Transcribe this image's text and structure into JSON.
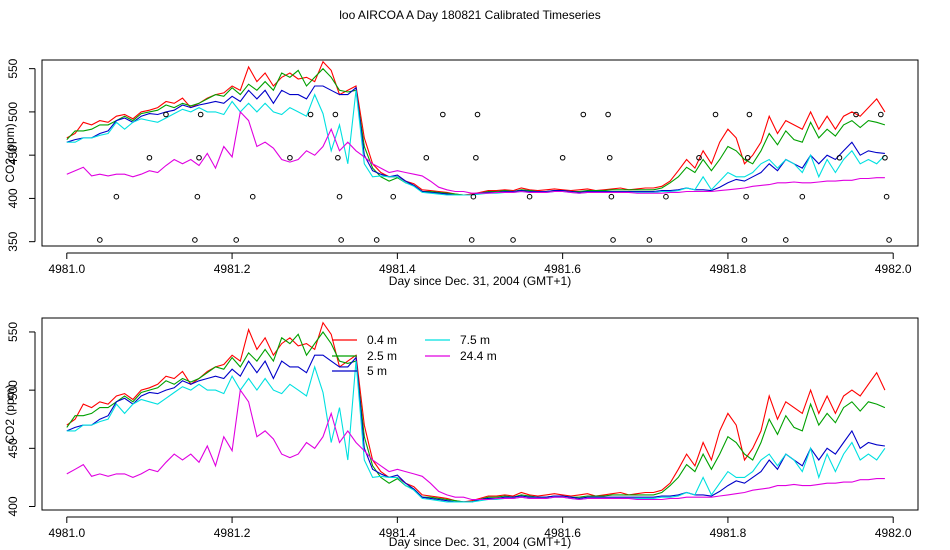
{
  "title": "loo AIRCOA A  Day 180821  Calibrated Timeseries",
  "chart_data": [
    {
      "type": "line",
      "xlabel": "Day since Dec. 31, 2004 (GMT+1)",
      "ylabel": "CO2 (ppm)",
      "xlim": [
        4980.97,
        4982.03
      ],
      "ylim": [
        345,
        560
      ],
      "xticks": [
        4981.0,
        4981.2,
        4981.4,
        4981.6,
        4981.8,
        4982.0
      ],
      "xtick_labels": [
        "4981.0",
        "4981.2",
        "4981.4",
        "4981.6",
        "4981.8",
        "4982.0"
      ],
      "yticks": [
        350,
        400,
        450,
        500,
        550
      ],
      "ytick_labels": [
        "350",
        "400",
        "450",
        "500",
        "550"
      ],
      "grid": false,
      "legend": "none",
      "x": [
        4981.0,
        4981.01,
        4981.02,
        4981.03,
        4981.04,
        4981.05,
        4981.06,
        4981.07,
        4981.08,
        4981.09,
        4981.1,
        4981.11,
        4981.12,
        4981.13,
        4981.14,
        4981.15,
        4981.16,
        4981.17,
        4981.18,
        4981.19,
        4981.2,
        4981.21,
        4981.22,
        4981.23,
        4981.24,
        4981.25,
        4981.26,
        4981.27,
        4981.28,
        4981.29,
        4981.3,
        4981.31,
        4981.32,
        4981.33,
        4981.34,
        4981.35,
        4981.36,
        4981.37,
        4981.38,
        4981.39,
        4981.4,
        4981.41,
        4981.42,
        4981.43,
        4981.44,
        4981.45,
        4981.46,
        4981.47,
        4981.48,
        4981.49,
        4981.5,
        4981.51,
        4981.52,
        4981.53,
        4981.54,
        4981.55,
        4981.56,
        4981.57,
        4981.58,
        4981.59,
        4981.6,
        4981.61,
        4981.62,
        4981.63,
        4981.64,
        4981.65,
        4981.66,
        4981.67,
        4981.68,
        4981.69,
        4981.7,
        4981.71,
        4981.72,
        4981.73,
        4981.74,
        4981.75,
        4981.76,
        4981.77,
        4981.78,
        4981.79,
        4981.8,
        4981.81,
        4981.82,
        4981.83,
        4981.84,
        4981.85,
        4981.86,
        4981.87,
        4981.88,
        4981.89,
        4981.9,
        4981.91,
        4981.92,
        4981.93,
        4981.94,
        4981.95,
        4981.96,
        4981.97,
        4981.98,
        4981.99
      ],
      "series": [
        {
          "name": "0.4 m",
          "color": "#ff0000",
          "values": [
            470,
            475,
            488,
            485,
            490,
            488,
            495,
            497,
            492,
            500,
            502,
            505,
            512,
            510,
            516,
            505,
            510,
            516,
            520,
            522,
            530,
            525,
            552,
            535,
            545,
            530,
            540,
            545,
            538,
            540,
            535,
            558,
            548,
            520,
            525,
            530,
            470,
            440,
            430,
            425,
            425,
            420,
            417,
            410,
            409,
            408,
            407,
            405,
            404,
            405,
            407,
            409,
            409,
            410,
            409,
            412,
            410,
            409,
            410,
            411,
            410,
            409,
            410,
            411,
            409,
            410,
            411,
            412,
            410,
            411,
            412,
            412,
            414,
            420,
            432,
            445,
            435,
            455,
            440,
            465,
            480,
            470,
            440,
            450,
            465,
            495,
            475,
            490,
            485,
            480,
            500,
            480,
            495,
            480,
            495,
            500,
            495,
            505,
            515,
            500
          ]
        },
        {
          "name": "2.5 m",
          "color": "#00a000",
          "values": [
            468,
            478,
            478,
            480,
            485,
            485,
            490,
            495,
            490,
            498,
            500,
            502,
            508,
            505,
            510,
            507,
            510,
            515,
            520,
            518,
            528,
            520,
            532,
            525,
            535,
            525,
            545,
            540,
            548,
            530,
            540,
            550,
            540,
            525,
            523,
            525,
            460,
            435,
            425,
            420,
            424,
            418,
            415,
            408,
            408,
            407,
            406,
            405,
            404,
            404,
            406,
            408,
            408,
            409,
            408,
            410,
            409,
            408,
            408,
            409,
            409,
            408,
            408,
            409,
            409,
            409,
            410,
            410,
            410,
            410,
            410,
            410,
            412,
            418,
            425,
            436,
            430,
            445,
            432,
            445,
            460,
            455,
            445,
            440,
            455,
            475,
            462,
            478,
            468,
            465,
            488,
            470,
            480,
            472,
            485,
            490,
            482,
            490,
            488,
            485
          ]
        },
        {
          "name": "5 m",
          "color": "#0000c8",
          "values": [
            465,
            468,
            470,
            470,
            475,
            478,
            490,
            493,
            488,
            495,
            498,
            497,
            500,
            502,
            508,
            505,
            508,
            510,
            512,
            510,
            518,
            512,
            525,
            515,
            525,
            510,
            525,
            520,
            520,
            515,
            530,
            530,
            525,
            520,
            520,
            528,
            450,
            432,
            428,
            425,
            427,
            420,
            415,
            408,
            407,
            406,
            405,
            404,
            404,
            404,
            406,
            407,
            407,
            408,
            408,
            409,
            408,
            408,
            408,
            409,
            409,
            408,
            407,
            408,
            408,
            408,
            408,
            408,
            408,
            408,
            408,
            408,
            409,
            409,
            410,
            412,
            410,
            410,
            409,
            413,
            418,
            422,
            420,
            425,
            430,
            440,
            432,
            445,
            440,
            435,
            450,
            440,
            450,
            445,
            455,
            465,
            450,
            455,
            453,
            452
          ]
        },
        {
          "name": "7.5 m",
          "color": "#00e0e0",
          "values": [
            465,
            465,
            470,
            470,
            473,
            475,
            488,
            480,
            488,
            492,
            490,
            488,
            493,
            498,
            503,
            500,
            505,
            500,
            500,
            497,
            512,
            500,
            510,
            500,
            510,
            500,
            497,
            505,
            500,
            495,
            520,
            498,
            455,
            485,
            440,
            525,
            440,
            425,
            426,
            425,
            425,
            418,
            414,
            407,
            406,
            405,
            404,
            404,
            404,
            404,
            405,
            406,
            406,
            407,
            407,
            408,
            407,
            407,
            407,
            408,
            408,
            407,
            406,
            407,
            407,
            407,
            407,
            407,
            407,
            407,
            407,
            407,
            408,
            408,
            409,
            412,
            410,
            425,
            410,
            420,
            430,
            425,
            425,
            430,
            440,
            445,
            435,
            445,
            440,
            430,
            450,
            425,
            445,
            430,
            445,
            455,
            440,
            445,
            440,
            450
          ]
        },
        {
          "name": "24.4 m",
          "color": "#e000e0",
          "values": [
            428,
            432,
            436,
            426,
            428,
            426,
            428,
            428,
            425,
            428,
            432,
            430,
            438,
            445,
            440,
            445,
            438,
            452,
            435,
            460,
            448,
            500,
            490,
            460,
            465,
            458,
            445,
            442,
            445,
            455,
            450,
            460,
            480,
            455,
            465,
            455,
            448,
            440,
            435,
            430,
            432,
            430,
            428,
            426,
            420,
            413,
            410,
            408,
            408,
            406,
            406,
            406,
            407,
            407,
            407,
            408,
            407,
            407,
            407,
            408,
            408,
            407,
            406,
            407,
            407,
            407,
            407,
            407,
            407,
            406,
            406,
            406,
            406,
            407,
            407,
            408,
            408,
            408,
            408,
            409,
            410,
            411,
            412,
            414,
            415,
            416,
            418,
            418,
            419,
            418,
            418,
            419,
            420,
            420,
            421,
            421,
            423,
            423,
            424,
            424
          ]
        }
      ],
      "circles": [
        {
          "x": 4981.04,
          "y": 352
        },
        {
          "x": 4981.06,
          "y": 402
        },
        {
          "x": 4981.1,
          "y": 447
        },
        {
          "x": 4981.12,
          "y": 497
        },
        {
          "x": 4981.155,
          "y": 352
        },
        {
          "x": 4981.158,
          "y": 402
        },
        {
          "x": 4981.16,
          "y": 447
        },
        {
          "x": 4981.162,
          "y": 497
        },
        {
          "x": 4981.205,
          "y": 352
        },
        {
          "x": 4981.225,
          "y": 402
        },
        {
          "x": 4981.27,
          "y": 447
        },
        {
          "x": 4981.295,
          "y": 497
        },
        {
          "x": 4981.325,
          "y": 497
        },
        {
          "x": 4981.328,
          "y": 447
        },
        {
          "x": 4981.33,
          "y": 402
        },
        {
          "x": 4981.332,
          "y": 352
        },
        {
          "x": 4981.375,
          "y": 352
        },
        {
          "x": 4981.395,
          "y": 402
        },
        {
          "x": 4981.435,
          "y": 447
        },
        {
          "x": 4981.455,
          "y": 497
        },
        {
          "x": 4981.49,
          "y": 352
        },
        {
          "x": 4981.492,
          "y": 402
        },
        {
          "x": 4981.495,
          "y": 447
        },
        {
          "x": 4981.497,
          "y": 497
        },
        {
          "x": 4981.54,
          "y": 352
        },
        {
          "x": 4981.56,
          "y": 402
        },
        {
          "x": 4981.6,
          "y": 447
        },
        {
          "x": 4981.625,
          "y": 497
        },
        {
          "x": 4981.655,
          "y": 497
        },
        {
          "x": 4981.657,
          "y": 447
        },
        {
          "x": 4981.659,
          "y": 402
        },
        {
          "x": 4981.661,
          "y": 352
        },
        {
          "x": 4981.705,
          "y": 352
        },
        {
          "x": 4981.725,
          "y": 402
        },
        {
          "x": 4981.765,
          "y": 447
        },
        {
          "x": 4981.785,
          "y": 497
        },
        {
          "x": 4981.82,
          "y": 352
        },
        {
          "x": 4981.822,
          "y": 402
        },
        {
          "x": 4981.824,
          "y": 447
        },
        {
          "x": 4981.826,
          "y": 497
        },
        {
          "x": 4981.87,
          "y": 352
        },
        {
          "x": 4981.89,
          "y": 402
        },
        {
          "x": 4981.935,
          "y": 447
        },
        {
          "x": 4981.955,
          "y": 497
        },
        {
          "x": 4981.985,
          "y": 497
        },
        {
          "x": 4981.99,
          "y": 447
        },
        {
          "x": 4981.992,
          "y": 402
        },
        {
          "x": 4981.995,
          "y": 352
        }
      ]
    },
    {
      "type": "line",
      "xlabel": "Day since Dec. 31, 2004 (GMT+1)",
      "ylabel": "CO2 (ppm)",
      "xlim": [
        4980.97,
        4982.03
      ],
      "ylim": [
        397,
        562
      ],
      "xticks": [
        4981.0,
        4981.2,
        4981.4,
        4981.6,
        4981.8,
        4982.0
      ],
      "xtick_labels": [
        "4981.0",
        "4981.2",
        "4981.4",
        "4981.6",
        "4981.8",
        "4982.0"
      ],
      "yticks": [
        400,
        450,
        500,
        550
      ],
      "ytick_labels": [
        "400",
        "450",
        "500",
        "550"
      ],
      "grid": false,
      "legend": "top-center",
      "legend_entries": [
        "0.4 m",
        "2.5 m",
        "5 m",
        "7.5 m",
        "24.4 m"
      ]
    }
  ]
}
